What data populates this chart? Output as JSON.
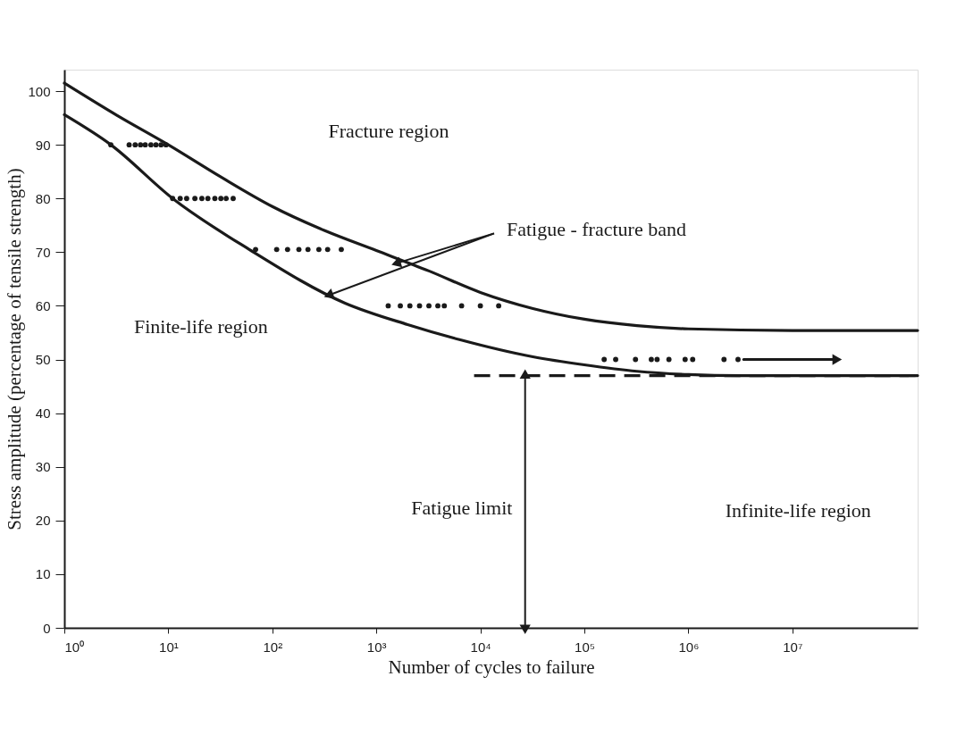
{
  "chart_data": {
    "type": "line",
    "xlabel": "Number of cycles to failure",
    "ylabel": "Stress amplitude (percentage of tensile strength)",
    "log": "x",
    "xlim": [
      1,
      160000000
    ],
    "ylim": [
      0,
      104
    ],
    "xticks": [
      {
        "value": 1,
        "label": "10⁰"
      },
      {
        "value": 10,
        "label": "10¹"
      },
      {
        "value": 100,
        "label": "10²"
      },
      {
        "value": 1000,
        "label": "10³"
      },
      {
        "value": 10000,
        "label": "10⁴"
      },
      {
        "value": 100000,
        "label": "10⁵"
      },
      {
        "value": 1000000,
        "label": "10⁶"
      },
      {
        "value": 10000000,
        "label": "10⁷"
      }
    ],
    "yticks": [
      0,
      10,
      20,
      30,
      40,
      50,
      60,
      70,
      80,
      90,
      100
    ],
    "grid": false,
    "series": [
      {
        "color": "#1a1a1a",
        "line_style": "solid",
        "x": [
          1,
          3.2,
          10,
          32,
          100,
          320,
          1000,
          3200,
          10000,
          32000,
          100000,
          320000,
          1000000,
          10000000,
          160000000
        ],
        "values": [
          101.5,
          95.5,
          90,
          84,
          78.5,
          74,
          70.3,
          66.5,
          62.5,
          59.5,
          57.5,
          56.3,
          55.7,
          55.4,
          55.4
        ]
      },
      {
        "color": "#1a1a1a",
        "line_style": "solid",
        "x": [
          1,
          2.8,
          11,
          60,
          500,
          2000,
          6300,
          32000,
          100000,
          320000,
          1000000,
          3200000,
          160000000
        ],
        "values": [
          95.6,
          90,
          80,
          70.5,
          60.5,
          56.5,
          53.7,
          50.5,
          49,
          47.8,
          47.2,
          47,
          47
        ]
      },
      {
        "type": "scatter",
        "color": "#1a1a1a",
        "marker": "circle",
        "x": [
          2.8,
          4.2,
          4.8,
          5.4,
          6,
          6.8,
          7.6,
          8.5,
          9.5,
          11,
          13,
          15,
          18,
          21,
          24,
          28,
          32,
          36,
          42,
          69,
          110,
          140,
          180,
          220,
          280,
          340,
          460,
          1300,
          1700,
          2100,
          2600,
          3200,
          3900,
          4500,
          6600,
          10000,
          15000,
          155000,
          200000,
          310000,
          440000,
          500000,
          650000,
          930000,
          1100000,
          2200000,
          3000000
        ],
        "values": [
          90,
          90,
          90,
          90,
          90,
          90,
          90,
          90,
          90,
          80,
          80,
          80,
          80,
          80,
          80,
          80,
          80,
          80,
          80,
          70.5,
          70.5,
          70.5,
          70.5,
          70.5,
          70.5,
          70.5,
          70.5,
          60,
          60,
          60,
          60,
          60,
          60,
          60,
          60,
          60,
          60,
          50,
          50,
          50,
          50,
          50,
          50,
          50,
          50,
          50,
          50
        ]
      },
      {
        "color": "#1a1a1a",
        "line_style": "dashed",
        "x": [
          8700,
          160000000
        ],
        "values": [
          47,
          47
        ]
      },
      {
        "color": "#1a1a1a",
        "line_style": "solid",
        "x": [
          3400000,
          26000000
        ],
        "values": [
          50,
          50
        ]
      }
    ],
    "annotations": [
      "Fracture region",
      "Finite-life region",
      "Infinite-life region",
      {
        "text": "Fatigue - fracture band",
        "x": 1600,
        "y": 68
      },
      "Fatigue limit"
    ]
  }
}
